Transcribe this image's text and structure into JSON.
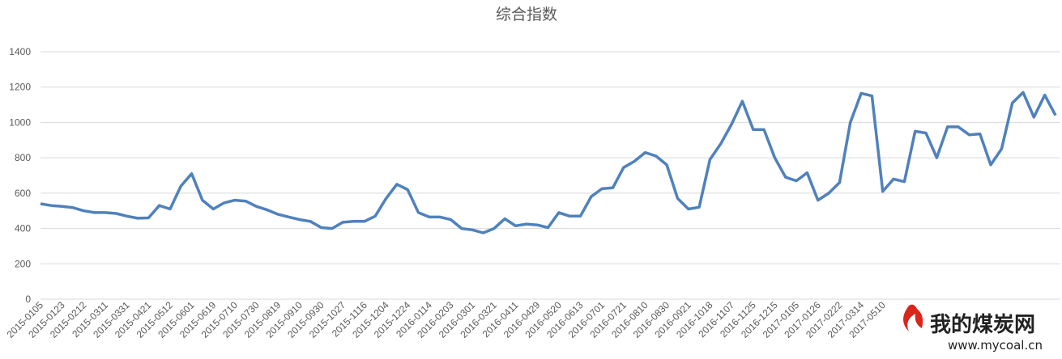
{
  "chart_data": {
    "type": "line",
    "title": "综合指数",
    "categories": [
      "2015-0105",
      null,
      "2015-0123",
      null,
      "2015-0212",
      null,
      "2015-0311",
      null,
      "2015-0331",
      null,
      "2015-0421",
      null,
      "2015-0512",
      null,
      "2015-0601",
      null,
      "2015-0619",
      null,
      "2015-0710",
      null,
      "2015-0730",
      null,
      "2015-0819",
      null,
      "2015-0910",
      null,
      "2015-0930",
      null,
      "2015-1027",
      null,
      "2015-1116",
      null,
      "2015-1204",
      null,
      "2015-1224",
      null,
      "2016-0114",
      null,
      "2016-0203",
      null,
      "2016-0301",
      null,
      "2016-0321",
      null,
      "2016-0411",
      null,
      "2016-0429",
      null,
      "2016-0520",
      null,
      "2016-0613",
      null,
      "2016-0701",
      null,
      "2016-0721",
      null,
      "2016-0810",
      null,
      "2016-0830",
      null,
      "2016-0921",
      null,
      "2016-1018",
      null,
      "2016-1107",
      null,
      "2016-1125",
      null,
      "2016-1215",
      null,
      "2017-0105",
      null,
      "2017-0126",
      null,
      "2017-0222",
      null,
      "2017-0314",
      null,
      "2017-0510",
      null,
      null,
      null,
      null,
      null,
      null,
      null,
      null,
      null,
      null,
      null,
      null,
      null,
      null,
      null,
      null
    ],
    "series": [
      {
        "name": "综合指数",
        "color": "#4f81bd",
        "values": [
          540,
          530,
          525,
          518,
          500,
          490,
          490,
          485,
          470,
          458,
          460,
          530,
          510,
          640,
          710,
          560,
          510,
          545,
          560,
          555,
          525,
          505,
          480,
          465,
          450,
          440,
          405,
          400,
          435,
          440,
          440,
          470,
          570,
          650,
          620,
          490,
          465,
          465,
          450,
          400,
          392,
          375,
          400,
          455,
          415,
          425,
          420,
          405,
          490,
          470,
          470,
          580,
          625,
          630,
          745,
          780,
          830,
          810,
          760,
          570,
          510,
          520,
          790,
          880,
          990,
          1120,
          960,
          960,
          800,
          690,
          670,
          715,
          560,
          600,
          660,
          1000,
          1165,
          1150,
          610,
          680,
          665,
          950,
          940,
          800,
          975,
          975,
          930,
          935,
          760,
          850,
          1110,
          1170,
          1030,
          1155,
          1040
        ]
      }
    ],
    "ylim": [
      0,
      1400
    ],
    "yticks": [
      0,
      200,
      400,
      600,
      800,
      1000,
      1200,
      1400
    ],
    "grid": true,
    "watermark": {
      "name": "我的煤炭网",
      "url": "www.mycoal.cn"
    }
  }
}
